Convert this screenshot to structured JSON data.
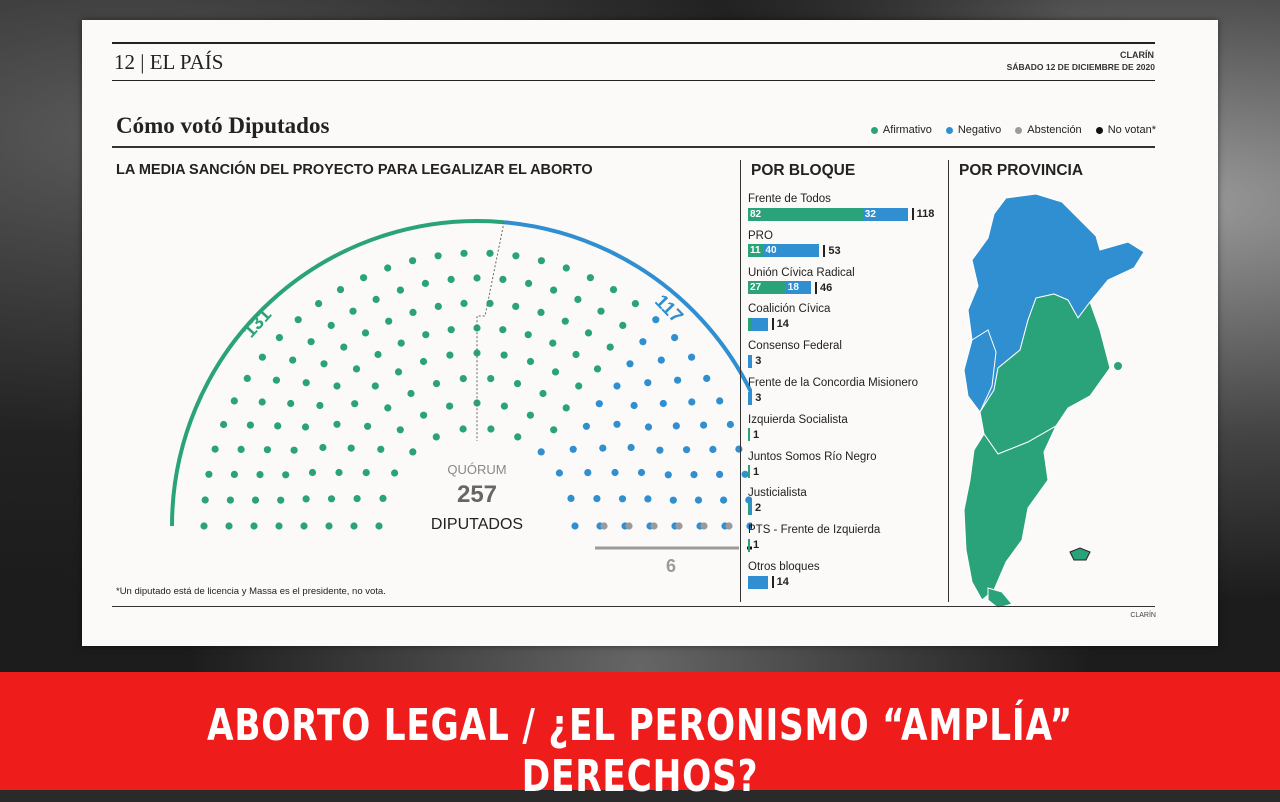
{
  "header": {
    "page_label": "12 | EL PAÍS",
    "brand_small": "CLARÍN",
    "date": "SÁBADO 12 DE DICIEMBRE DE 2020"
  },
  "title": "Cómo votó Diputados",
  "legend": [
    {
      "label": "Afirmativo",
      "color": "#2aa37a"
    },
    {
      "label": "Negativo",
      "color": "#2f8fd0"
    },
    {
      "label": "Abstención",
      "color": "#9b9b9b"
    },
    {
      "label": "No votan*",
      "color": "#111111"
    }
  ],
  "colors": {
    "afirmativo": "#2aa37a",
    "negativo": "#2f8fd0",
    "abstencion": "#9b9b9b",
    "novotan": "#111111"
  },
  "subtitle": "LA MEDIA SANCIÓN DEL PROYECTO PARA LEGALIZAR EL ABORTO",
  "sections": {
    "bloque": "POR BLOQUE",
    "provincia": "POR PROVINCIA"
  },
  "chart_data": [
    {
      "type": "parliament",
      "title": "LA MEDIA SANCIÓN DEL PROYECTO PARA LEGALIZAR EL ABORTO",
      "total_label": "QUÓRUM",
      "total_value": "257",
      "total_unit": "DIPUTADOS",
      "series": [
        {
          "name": "Afirmativo",
          "value": 131
        },
        {
          "name": "Negativo",
          "value": 117
        },
        {
          "name": "Abstención",
          "value": 6
        },
        {
          "name": "No votan*",
          "value": 2
        }
      ]
    },
    {
      "type": "bar",
      "stacked": true,
      "title": "POR BLOQUE",
      "categories": [
        "Frente de Todos",
        "PRO",
        "Unión Cívica Radical",
        "Coalición Cívica",
        "Consenso Federal",
        "Frente de la Concordia Misionero",
        "Izquierda Socialista",
        "Juntos Somos Río Negro",
        "Justicialista",
        "PTS - Frente de Izquierda",
        "Otros bloques"
      ],
      "series": [
        {
          "name": "Afirmativo",
          "values": [
            82,
            11,
            27,
            2,
            0,
            0,
            1,
            1,
            1,
            1,
            0
          ]
        },
        {
          "name": "Negativo",
          "values": [
            32,
            40,
            18,
            12,
            3,
            3,
            0,
            0,
            1,
            0,
            14
          ]
        }
      ],
      "labels": [
        {
          "a": "82",
          "n": "32",
          "t": "118"
        },
        {
          "a": "11",
          "n": "40",
          "t": "53"
        },
        {
          "a": "27",
          "n": "18",
          "t": "46"
        },
        {
          "a": "",
          "n": "",
          "t": "14"
        },
        {
          "a": "",
          "n": "",
          "t": "3"
        },
        {
          "a": "",
          "n": "",
          "t": "3"
        },
        {
          "a": "",
          "n": "",
          "t": "1"
        },
        {
          "a": "",
          "n": "",
          "t": "1"
        },
        {
          "a": "",
          "n": "",
          "t": "2"
        },
        {
          "a": "",
          "n": "",
          "t": "1"
        },
        {
          "a": "",
          "n": "",
          "t": "14"
        }
      ]
    }
  ],
  "footnote": "*Un diputado está de licencia y Massa es el presidente, no vota.",
  "credit": "CLARÍN",
  "banner": "ABORTO LEGAL / ¿EL PERONISMO “AMPLÍA” DERECHOS?"
}
